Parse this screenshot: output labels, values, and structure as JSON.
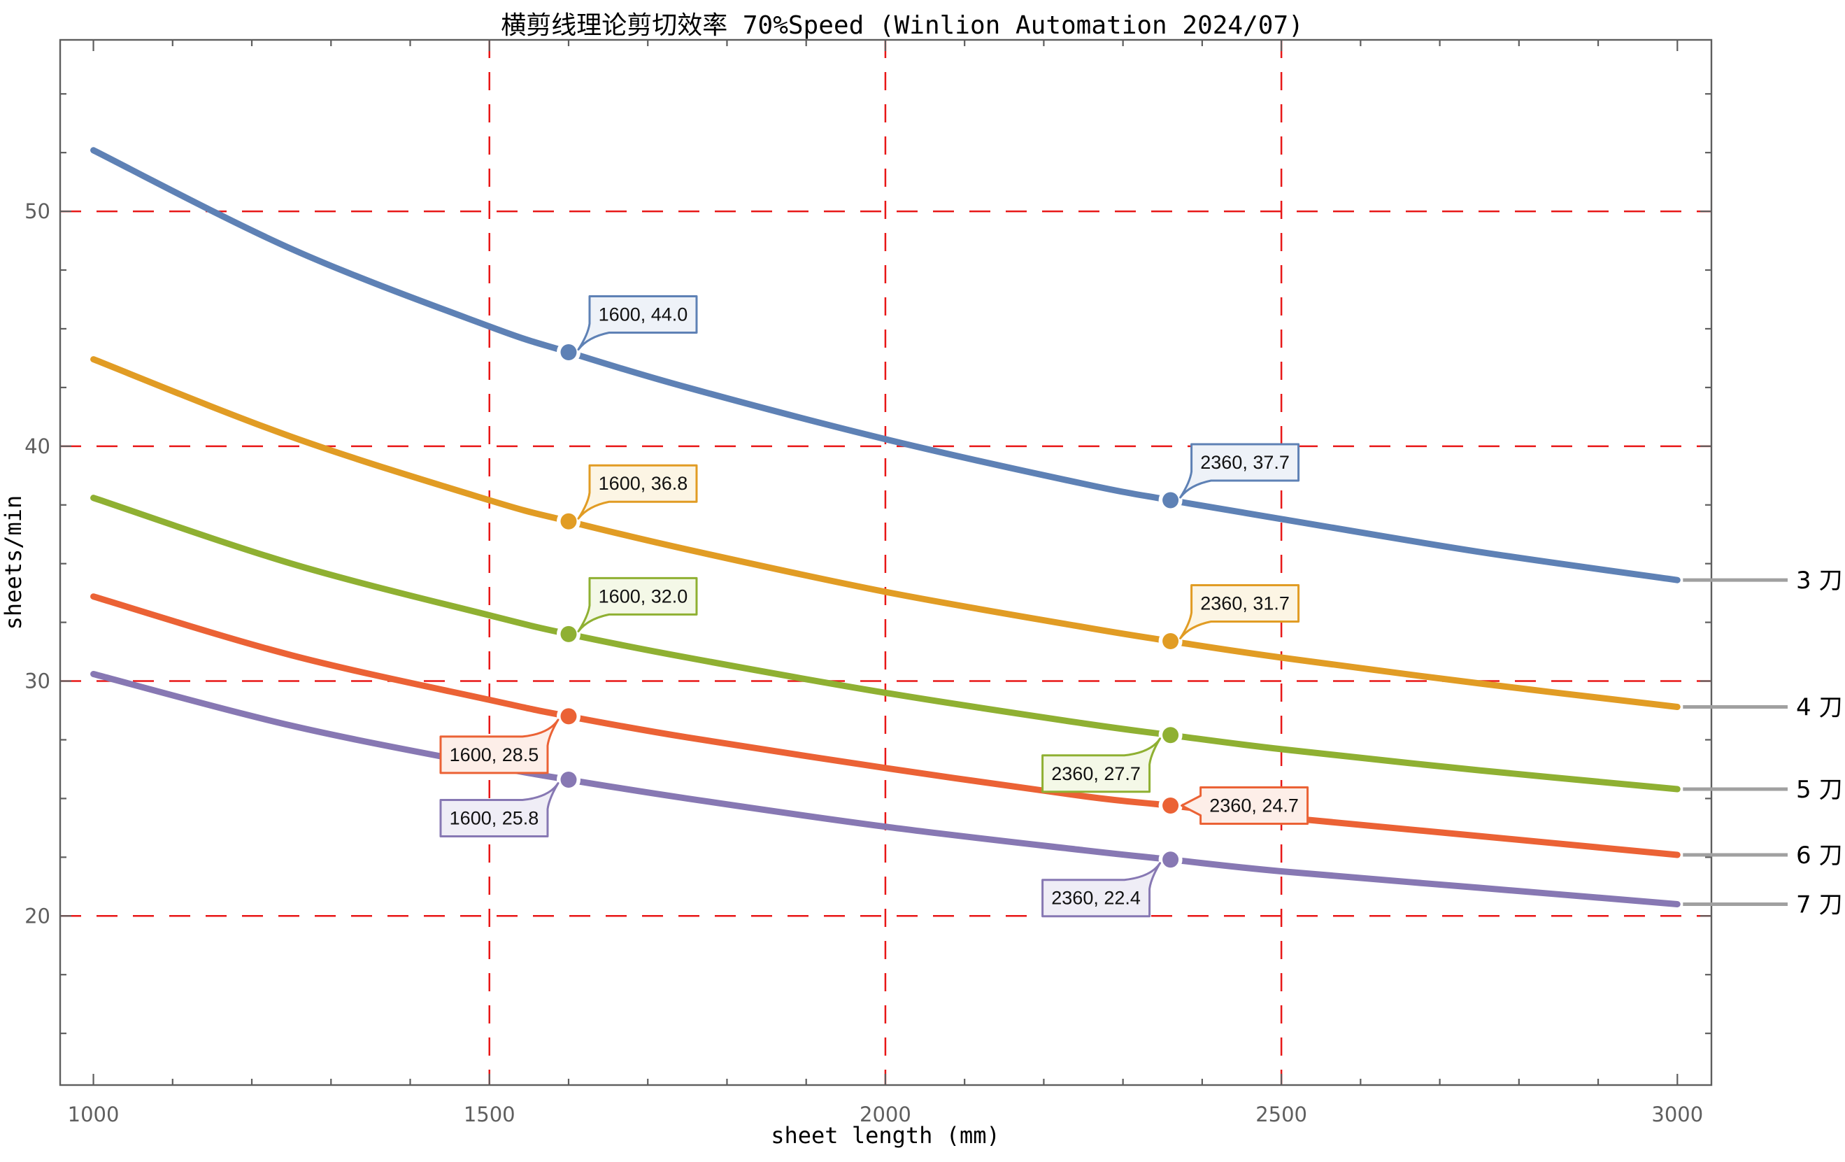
{
  "title": "横剪线理论剪切效率 70%Speed (Winlion Automation 2024/07)",
  "chart_data": {
    "type": "line",
    "title": "横剪线理论剪切效率 70%Speed (Winlion Automation 2024/07)",
    "xlabel": "sheet length (mm)",
    "ylabel": "sheets/min",
    "xlim": [
      958,
      3043
    ],
    "ylim": [
      12.8,
      57.3
    ],
    "x_major_ticks": [
      1000,
      1500,
      2000,
      2500,
      3000
    ],
    "x_minor_step": 100,
    "y_major_ticks": [
      20,
      30,
      40,
      50
    ],
    "y_minor_step": 2.5,
    "grid_on": true,
    "gridlines": {
      "x": [
        1500,
        2000,
        2500
      ],
      "y": [
        20,
        30,
        40,
        50
      ],
      "color": "#e81717",
      "style": "dashed"
    },
    "legend_position": "right-outside",
    "frame_color": "#5e5e5e",
    "leader_line_color": "#a0a0a0",
    "x": [
      1000,
      1250,
      1500,
      1600,
      1750,
      2000,
      2250,
      2360,
      2500,
      2750,
      3000
    ],
    "series": [
      {
        "name": "3 刀",
        "color": "#5e81b5",
        "callout_bg": "#eef2f8",
        "values": [
          52.6,
          48.4,
          45.1,
          44.0,
          42.5,
          40.3,
          38.4,
          37.7,
          36.9,
          35.5,
          34.3
        ],
        "callouts": [
          {
            "x": 1600,
            "y": 44.0,
            "label": "1600, 44.0",
            "placement": "above-right"
          },
          {
            "x": 2360,
            "y": 37.7,
            "label": "2360, 37.7",
            "placement": "above-right"
          }
        ]
      },
      {
        "name": "4 刀",
        "color": "#e19c24",
        "callout_bg": "#fcf5e4",
        "values": [
          43.7,
          40.4,
          37.7,
          36.8,
          35.6,
          33.8,
          32.3,
          31.7,
          31.0,
          29.9,
          28.9
        ],
        "callouts": [
          {
            "x": 1600,
            "y": 36.8,
            "label": "1600, 36.8",
            "placement": "above-right"
          },
          {
            "x": 2360,
            "y": 31.7,
            "label": "2360, 31.7",
            "placement": "above-right"
          }
        ]
      },
      {
        "name": "5 刀",
        "color": "#8fb032",
        "callout_bg": "#f4f8e7",
        "values": [
          37.8,
          35.0,
          32.8,
          32.0,
          31.0,
          29.5,
          28.2,
          27.7,
          27.1,
          26.2,
          25.4
        ],
        "callouts": [
          {
            "x": 1600,
            "y": 32.0,
            "label": "1600, 32.0",
            "placement": "above-right"
          },
          {
            "x": 2360,
            "y": 27.7,
            "label": "2360, 27.7",
            "placement": "below-left"
          }
        ]
      },
      {
        "name": "6 刀",
        "color": "#eb6235",
        "callout_bg": "#fdeee8",
        "values": [
          33.6,
          31.1,
          29.2,
          28.5,
          27.6,
          26.3,
          25.1,
          24.7,
          24.2,
          23.4,
          22.6
        ],
        "callouts": [
          {
            "x": 1600,
            "y": 28.5,
            "label": "1600, 28.5",
            "placement": "below-left"
          },
          {
            "x": 2360,
            "y": 24.7,
            "label": "2360, 24.7",
            "placement": "right"
          }
        ]
      },
      {
        "name": "7 刀",
        "color": "#8778b3",
        "callout_bg": "#efedf6",
        "values": [
          30.3,
          28.1,
          26.4,
          25.8,
          25.0,
          23.8,
          22.8,
          22.4,
          21.9,
          21.2,
          20.5
        ],
        "callouts": [
          {
            "x": 1600,
            "y": 25.8,
            "label": "1600, 25.8",
            "placement": "below-left"
          },
          {
            "x": 2360,
            "y": 22.4,
            "label": "2360, 22.4",
            "placement": "below-left"
          }
        ]
      }
    ]
  }
}
